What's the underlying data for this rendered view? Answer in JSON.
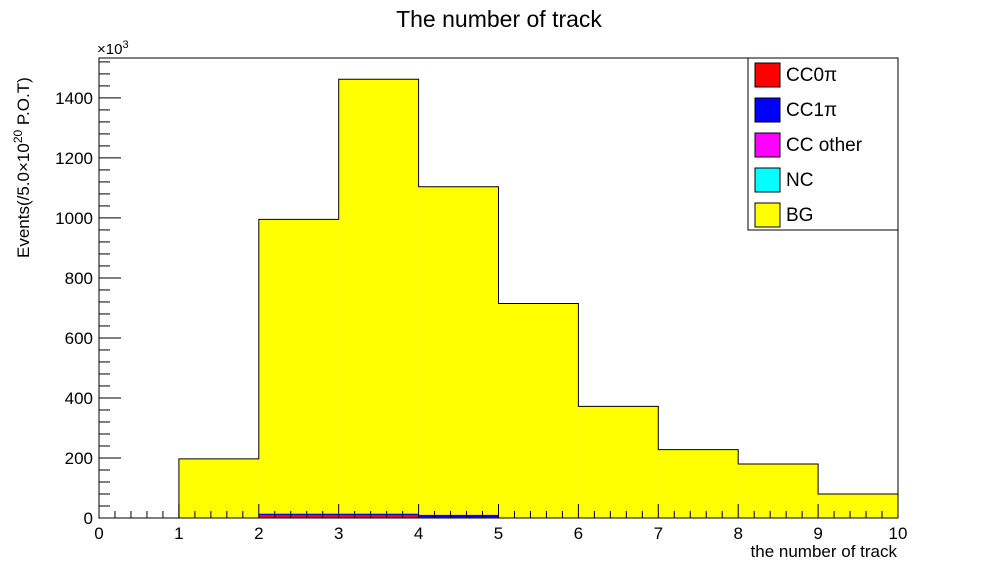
{
  "chart_data": {
    "type": "bar",
    "stacked": true,
    "title": "The number of track",
    "xlabel": "the number of track",
    "ylabel_main": "Events(/5.0×10",
    "ylabel_sup": "20",
    "ylabel_tail": " P.O.T)",
    "y_multiplier_base": "×10",
    "y_multiplier_exp": "3",
    "xlim": [
      0,
      10
    ],
    "ylim": [
      0,
      1533
    ],
    "x_ticks": [
      "0",
      "1",
      "2",
      "3",
      "4",
      "5",
      "6",
      "7",
      "8",
      "9",
      "10"
    ],
    "y_ticks": [
      "0",
      "200",
      "400",
      "600",
      "800",
      "1000",
      "1200",
      "1400"
    ],
    "bin_edges": [
      0,
      1,
      2,
      3,
      4,
      5,
      6,
      7,
      8,
      9,
      10
    ],
    "legend_position": "top-right",
    "series": [
      {
        "name": "CC0π",
        "color": "#ff0000",
        "values": [
          0,
          0,
          10,
          10,
          2,
          0,
          0,
          0,
          0,
          0
        ]
      },
      {
        "name": "CC1π",
        "color": "#0000ff",
        "values": [
          0,
          0,
          4,
          4,
          8,
          1,
          0,
          0,
          0,
          0
        ]
      },
      {
        "name": "CC other",
        "color": "#ff00ff",
        "values": [
          0,
          0,
          1,
          1,
          1,
          1,
          0,
          0,
          0,
          0
        ]
      },
      {
        "name": "NC",
        "color": "#00ffff",
        "values": [
          0,
          0,
          0,
          0,
          0,
          0,
          0,
          0,
          0,
          0
        ]
      },
      {
        "name": "BG",
        "color": "#ffff00",
        "values": [
          0,
          197,
          980,
          1447,
          1093,
          713,
          372,
          228,
          180,
          80
        ]
      }
    ]
  }
}
